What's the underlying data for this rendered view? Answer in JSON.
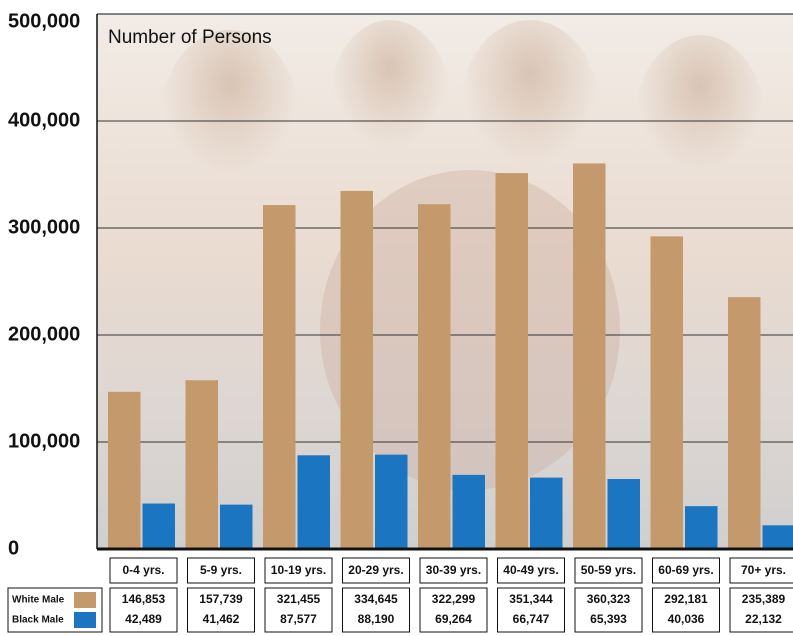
{
  "chart_data": {
    "type": "bar",
    "y_label": "Number of Persons",
    "categories": [
      "0-4 yrs.",
      "5-9 yrs.",
      "10-19 yrs.",
      "20-29 yrs.",
      "30-39 yrs.",
      "40-49 yrs.",
      "50-59 yrs.",
      "60-69 yrs.",
      "70+ yrs."
    ],
    "series": [
      {
        "name": "White Male",
        "color": "#c49a6c",
        "values": [
          146853,
          157739,
          321455,
          334645,
          322299,
          351344,
          360323,
          292181,
          235389
        ],
        "value_labels": [
          "146,853",
          "157,739",
          "321,455",
          "334,645",
          "322,299",
          "351,344",
          "360,323",
          "292,181",
          "235,389"
        ]
      },
      {
        "name": "Black Male",
        "color": "#1b75c0",
        "values": [
          42489,
          41462,
          87577,
          88190,
          69264,
          66747,
          65393,
          40036,
          22132
        ],
        "value_labels": [
          "42,489",
          "41,462",
          "87,577",
          "88,190",
          "69,264",
          "66,747",
          "65,393",
          "40,036",
          "22,132"
        ]
      }
    ],
    "ylim": [
      0,
      500000
    ],
    "yticks": [
      0,
      {
        "value": 100000,
        "label": "100,000"
      },
      {
        "value": 200000,
        "label": "200,000"
      },
      {
        "value": 300000,
        "label": "300,000"
      },
      {
        "value": 400000,
        "label": "400,000"
      },
      {
        "value": 500000,
        "label": "500,000"
      }
    ],
    "grid": true
  }
}
